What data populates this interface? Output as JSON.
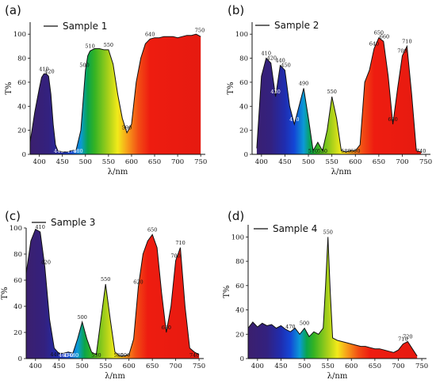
{
  "figure": {
    "colors": {
      "spectrum": [
        {
          "nm": 380,
          "hex": "#3b1f6e"
        },
        {
          "nm": 420,
          "hex": "#33217f"
        },
        {
          "nm": 450,
          "hex": "#1f2db0"
        },
        {
          "nm": 470,
          "hex": "#1347d6"
        },
        {
          "nm": 490,
          "hex": "#0b9ad6"
        },
        {
          "nm": 505,
          "hex": "#0aa54a"
        },
        {
          "nm": 520,
          "hex": "#35b323"
        },
        {
          "nm": 550,
          "hex": "#a9d01a"
        },
        {
          "nm": 570,
          "hex": "#f2ea1a"
        },
        {
          "nm": 590,
          "hex": "#f7a11a"
        },
        {
          "nm": 615,
          "hex": "#f24d14"
        },
        {
          "nm": 640,
          "hex": "#ee1c10"
        },
        {
          "nm": 760,
          "hex": "#e51a10"
        }
      ],
      "curve": "#111111",
      "annotation_dark": "#111111",
      "annotation_light": "#ffffff"
    }
  },
  "chart_data": [
    {
      "type": "area",
      "panel": "(a)",
      "legend": "Sample 1",
      "xlabel": "λ/nm",
      "ylabel": "T%",
      "xlim": [
        380,
        760
      ],
      "ylim": [
        0,
        110
      ],
      "xticks": [
        400,
        450,
        500,
        550,
        600,
        650,
        700,
        750
      ],
      "yticks": [
        0,
        20,
        40,
        60,
        80,
        100
      ],
      "x": [
        380,
        390,
        400,
        405,
        410,
        415,
        420,
        425,
        430,
        435,
        440,
        450,
        460,
        470,
        480,
        490,
        500,
        505,
        510,
        520,
        530,
        540,
        550,
        560,
        570,
        580,
        590,
        600,
        610,
        620,
        630,
        640,
        650,
        660,
        670,
        680,
        690,
        700,
        710,
        720,
        730,
        740,
        750
      ],
      "y": [
        10,
        35,
        55,
        64,
        67,
        67,
        65,
        50,
        25,
        8,
        3,
        2,
        2,
        3,
        4,
        20,
        70,
        82,
        86,
        88,
        88,
        87,
        87,
        75,
        50,
        30,
        18,
        25,
        60,
        80,
        92,
        96,
        97,
        97,
        98,
        98,
        98,
        97,
        98,
        99,
        99,
        100,
        98
      ],
      "annotations": [
        {
          "text": "410",
          "x": 410,
          "y": 67,
          "tone": "dark"
        },
        {
          "text": "420",
          "x": 422,
          "y": 65,
          "tone": "dark"
        },
        {
          "text": "440",
          "x": 442,
          "y": 3,
          "tone": "light"
        },
        {
          "text": "470",
          "x": 470,
          "y": 3,
          "tone": "light"
        },
        {
          "text": "480",
          "x": 484,
          "y": 4,
          "tone": "light"
        },
        {
          "text": "500",
          "x": 498,
          "y": 70,
          "tone": "dark"
        },
        {
          "text": "510",
          "x": 510,
          "y": 86,
          "tone": "dark"
        },
        {
          "text": "550",
          "x": 550,
          "y": 87,
          "tone": "dark"
        },
        {
          "text": "590",
          "x": 590,
          "y": 18,
          "tone": "dark"
        },
        {
          "text": "640",
          "x": 640,
          "y": 96,
          "tone": "dark"
        },
        {
          "text": "750",
          "x": 748,
          "y": 99,
          "tone": "dark"
        }
      ]
    },
    {
      "type": "area",
      "panel": "(b)",
      "legend": "Sample 2",
      "xlabel": "λ/nm",
      "ylabel": "T%",
      "xlim": [
        380,
        760
      ],
      "ylim": [
        0,
        110
      ],
      "xticks": [
        400,
        450,
        500,
        550,
        600,
        650,
        700,
        750
      ],
      "yticks": [
        0,
        20,
        40,
        60,
        80,
        100
      ],
      "x": [
        390,
        400,
        410,
        420,
        430,
        440,
        450,
        460,
        470,
        480,
        490,
        500,
        510,
        520,
        530,
        540,
        550,
        560,
        570,
        580,
        590,
        600,
        610,
        620,
        630,
        640,
        650,
        660,
        670,
        680,
        690,
        700,
        710,
        720,
        730,
        740
      ],
      "y": [
        5,
        65,
        80,
        76,
        48,
        74,
        70,
        40,
        25,
        40,
        55,
        30,
        3,
        10,
        3,
        20,
        48,
        30,
        3,
        2,
        3,
        3,
        8,
        60,
        70,
        88,
        97,
        94,
        65,
        25,
        55,
        82,
        90,
        50,
        3,
        2
      ],
      "annotations": [
        {
          "text": "410",
          "x": 410,
          "y": 80,
          "tone": "dark"
        },
        {
          "text": "420",
          "x": 422,
          "y": 76,
          "tone": "dark"
        },
        {
          "text": "430",
          "x": 430,
          "y": 48,
          "tone": "light"
        },
        {
          "text": "440",
          "x": 440,
          "y": 74,
          "tone": "dark"
        },
        {
          "text": "450",
          "x": 452,
          "y": 70,
          "tone": "dark"
        },
        {
          "text": "470",
          "x": 470,
          "y": 25,
          "tone": "light"
        },
        {
          "text": "490",
          "x": 490,
          "y": 55,
          "tone": "dark"
        },
        {
          "text": "510",
          "x": 510,
          "y": 3,
          "tone": "dark"
        },
        {
          "text": "530",
          "x": 530,
          "y": 3,
          "tone": "dark"
        },
        {
          "text": "550",
          "x": 550,
          "y": 48,
          "tone": "dark"
        },
        {
          "text": "580",
          "x": 580,
          "y": 2,
          "tone": "dark"
        },
        {
          "text": "600",
          "x": 600,
          "y": 3,
          "tone": "dark"
        },
        {
          "text": "640",
          "x": 640,
          "y": 88,
          "tone": "dark"
        },
        {
          "text": "650",
          "x": 650,
          "y": 97,
          "tone": "dark"
        },
        {
          "text": "660",
          "x": 662,
          "y": 94,
          "tone": "dark"
        },
        {
          "text": "680",
          "x": 680,
          "y": 25,
          "tone": "dark"
        },
        {
          "text": "700",
          "x": 700,
          "y": 82,
          "tone": "dark"
        },
        {
          "text": "710",
          "x": 710,
          "y": 90,
          "tone": "dark"
        },
        {
          "text": "740",
          "x": 740,
          "y": 2,
          "tone": "dark"
        }
      ]
    },
    {
      "type": "area",
      "panel": "(c)",
      "legend": "Sample 3",
      "xlabel": "λ/nm",
      "ylabel": "T%",
      "xlim": [
        380,
        760
      ],
      "ylim": [
        0,
        100
      ],
      "xticks": [
        400,
        450,
        500,
        550,
        600,
        650,
        700,
        750
      ],
      "yticks": [
        0,
        20,
        40,
        60,
        80,
        100
      ],
      "x": [
        380,
        390,
        400,
        410,
        420,
        430,
        440,
        450,
        460,
        470,
        480,
        490,
        500,
        510,
        520,
        530,
        540,
        550,
        560,
        570,
        580,
        590,
        600,
        610,
        620,
        630,
        640,
        650,
        660,
        670,
        680,
        690,
        700,
        710,
        720,
        730,
        740,
        750
      ],
      "y": [
        65,
        90,
        99,
        97,
        70,
        30,
        8,
        4,
        4,
        5,
        4,
        15,
        28,
        15,
        5,
        3,
        30,
        57,
        30,
        5,
        2,
        2,
        3,
        15,
        55,
        80,
        90,
        95,
        85,
        50,
        20,
        40,
        75,
        85,
        40,
        8,
        5,
        3
      ],
      "annotations": [
        {
          "text": "410",
          "x": 410,
          "y": 97,
          "tone": "dark"
        },
        {
          "text": "420",
          "x": 422,
          "y": 70,
          "tone": "dark"
        },
        {
          "text": "440",
          "x": 442,
          "y": 8,
          "tone": "dark"
        },
        {
          "text": "460",
          "x": 460,
          "y": 4,
          "tone": "light"
        },
        {
          "text": "470",
          "x": 470,
          "y": 5,
          "tone": "light"
        },
        {
          "text": "480",
          "x": 482,
          "y": 4,
          "tone": "light"
        },
        {
          "text": "500",
          "x": 500,
          "y": 28,
          "tone": "dark"
        },
        {
          "text": "530",
          "x": 530,
          "y": 3,
          "tone": "dark"
        },
        {
          "text": "550",
          "x": 550,
          "y": 57,
          "tone": "dark"
        },
        {
          "text": "580",
          "x": 578,
          "y": 2,
          "tone": "dark"
        },
        {
          "text": "590",
          "x": 592,
          "y": 2,
          "tone": "dark"
        },
        {
          "text": "620",
          "x": 620,
          "y": 55,
          "tone": "dark"
        },
        {
          "text": "650",
          "x": 650,
          "y": 95,
          "tone": "dark"
        },
        {
          "text": "680",
          "x": 680,
          "y": 20,
          "tone": "dark"
        },
        {
          "text": "700",
          "x": 700,
          "y": 75,
          "tone": "dark"
        },
        {
          "text": "710",
          "x": 710,
          "y": 85,
          "tone": "dark"
        },
        {
          "text": "740",
          "x": 740,
          "y": 5,
          "tone": "dark"
        }
      ]
    },
    {
      "type": "area",
      "panel": "(d)",
      "legend": "Sample 4",
      "xlabel": "λ/nm",
      "ylabel": "T%",
      "xlim": [
        380,
        760
      ],
      "ylim": [
        0,
        110
      ],
      "xticks": [
        400,
        450,
        500,
        550,
        600,
        650,
        700,
        750
      ],
      "yticks": [
        0,
        20,
        40,
        60,
        80,
        100
      ],
      "x": [
        380,
        390,
        400,
        410,
        420,
        430,
        440,
        450,
        460,
        470,
        480,
        490,
        500,
        510,
        520,
        530,
        540,
        545,
        550,
        555,
        560,
        570,
        580,
        590,
        600,
        610,
        620,
        630,
        640,
        650,
        660,
        670,
        680,
        690,
        700,
        710,
        720,
        730,
        740
      ],
      "y": [
        25,
        30,
        26,
        29,
        27,
        28,
        25,
        27,
        24,
        22,
        25,
        20,
        25,
        18,
        22,
        20,
        25,
        60,
        100,
        55,
        17,
        15,
        14,
        13,
        12,
        11,
        10,
        10,
        9,
        8,
        8,
        7,
        6,
        5,
        7,
        12,
        14,
        8,
        2
      ],
      "annotations": [
        {
          "text": "470",
          "x": 470,
          "y": 22,
          "tone": "dark"
        },
        {
          "text": "500",
          "x": 500,
          "y": 25,
          "tone": "dark"
        },
        {
          "text": "550",
          "x": 550,
          "y": 100,
          "tone": "dark"
        },
        {
          "text": "710",
          "x": 710,
          "y": 12,
          "tone": "dark"
        },
        {
          "text": "720",
          "x": 720,
          "y": 14,
          "tone": "dark"
        }
      ]
    }
  ]
}
